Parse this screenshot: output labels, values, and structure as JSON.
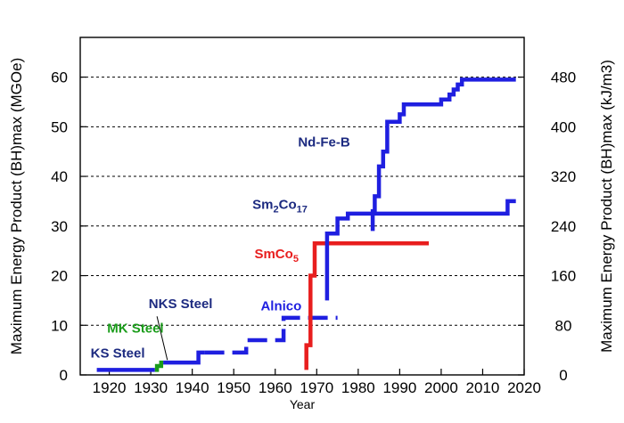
{
  "chart_data": {
    "type": "line",
    "xlabel": "Year",
    "ylabel_left": "Maximum Energy Product (BH)max (MGOe)",
    "ylabel_right": "Maximum Energy Product (BH)max (kJ/m3)",
    "xlim": [
      1913,
      2020
    ],
    "ylim": [
      0,
      68
    ],
    "x_ticks": [
      1920,
      1930,
      1940,
      1950,
      1960,
      1970,
      1980,
      1990,
      2000,
      2010,
      2020
    ],
    "y_left_ticks": [
      0,
      10,
      20,
      30,
      40,
      50,
      60
    ],
    "y_right_ticks": [
      {
        "value": 0,
        "label": "0"
      },
      {
        "value": 10,
        "label": "80"
      },
      {
        "value": 20,
        "label": "160"
      },
      {
        "value": 30,
        "label": "240"
      },
      {
        "value": 40,
        "label": "320"
      },
      {
        "value": 50,
        "label": "400"
      },
      {
        "value": 60,
        "label": "480"
      }
    ],
    "grid": "horizontal dashed",
    "series": [
      {
        "name": "KS Steel",
        "color": "#1f1fe0",
        "style": "solid",
        "points": [
          [
            1917,
            1
          ],
          [
            1931,
            1
          ]
        ]
      },
      {
        "name": "MK Steel",
        "color": "#1a9c1a",
        "style": "solid",
        "points": [
          [
            1931,
            1
          ],
          [
            1931.5,
            1
          ],
          [
            1931.5,
            1.8
          ],
          [
            1932.5,
            1.8
          ],
          [
            1932.5,
            2.5
          ],
          [
            1933,
            2.5
          ]
        ]
      },
      {
        "name": "NKS Steel",
        "color": "#1f1fe0",
        "style": "solid",
        "points": [
          [
            1933,
            2.5
          ],
          [
            1941.5,
            2.5
          ],
          [
            1941.5,
            4.5
          ],
          [
            1943,
            4.5
          ]
        ]
      },
      {
        "name": "Alnico",
        "color": "#1f1fe0",
        "style": "dashed",
        "points": [
          [
            1943,
            4.5
          ],
          [
            1953,
            4.5
          ],
          [
            1953,
            7
          ],
          [
            1962,
            7
          ],
          [
            1962,
            11.5
          ],
          [
            1975,
            11.5
          ]
        ]
      },
      {
        "name": "SmCo5",
        "color": "#e81e1e",
        "style": "solid",
        "points": [
          [
            1967.5,
            1
          ],
          [
            1967.5,
            6
          ],
          [
            1968.5,
            6
          ],
          [
            1968.5,
            20
          ],
          [
            1969.5,
            20
          ],
          [
            1969.5,
            26.5
          ],
          [
            1997,
            26.5
          ]
        ]
      },
      {
        "name": "Sm2Co17",
        "color": "#1f1fe0",
        "style": "solid",
        "points": [
          [
            1972.5,
            15
          ],
          [
            1972.5,
            28.5
          ],
          [
            1975,
            28.5
          ],
          [
            1975,
            31.5
          ],
          [
            1977.5,
            31.5
          ],
          [
            1977.5,
            32.5
          ],
          [
            2016,
            32.5
          ],
          [
            2016,
            35
          ],
          [
            2018,
            35
          ]
        ]
      },
      {
        "name": "Nd-Fe-B",
        "color": "#1f1fe0",
        "style": "solid",
        "points": [
          [
            1983.5,
            29
          ],
          [
            1983.5,
            33
          ],
          [
            1984,
            33
          ],
          [
            1984,
            36
          ],
          [
            1985,
            36
          ],
          [
            1985,
            42
          ],
          [
            1986,
            42
          ],
          [
            1986,
            45
          ],
          [
            1987,
            45
          ],
          [
            1987,
            51
          ],
          [
            1990,
            51
          ],
          [
            1990,
            52.5
          ],
          [
            1991,
            52.5
          ],
          [
            1991,
            54.5
          ],
          [
            2000,
            54.5
          ],
          [
            2000,
            55.5
          ],
          [
            2002,
            55.5
          ],
          [
            2002,
            56.5
          ],
          [
            2003,
            56.5
          ],
          [
            2003,
            57.5
          ],
          [
            2004,
            57.5
          ],
          [
            2004,
            58.5
          ],
          [
            2005,
            58.5
          ],
          [
            2005,
            59.5
          ],
          [
            2018,
            59.5
          ]
        ]
      }
    ],
    "annotations": [
      {
        "text": "KS Steel",
        "color": "#1c2a80",
        "x": 1915.5,
        "y": 3.5
      },
      {
        "text": "MK Steel",
        "color": "#1a9c1a",
        "x": 1919.5,
        "y": 8.5
      },
      {
        "text": "NKS Steel",
        "color": "#1c2a80",
        "x": 1929.5,
        "y": 13.5
      },
      {
        "text": "Alnico",
        "color": "#1f1fe0",
        "x": 1956.5,
        "y": 13
      },
      {
        "text": "SmCo",
        "sub": "5",
        "color": "#e81e1e",
        "x": 1955,
        "y": 23.5
      },
      {
        "text": "Sm",
        "sub": "2",
        "text2": "Co",
        "sub2": "17",
        "color": "#1c2a80",
        "x": 1954.5,
        "y": 33.5
      },
      {
        "text": "Nd-Fe-B",
        "color": "#1c2a80",
        "x": 1965.5,
        "y": 46
      }
    ]
  }
}
